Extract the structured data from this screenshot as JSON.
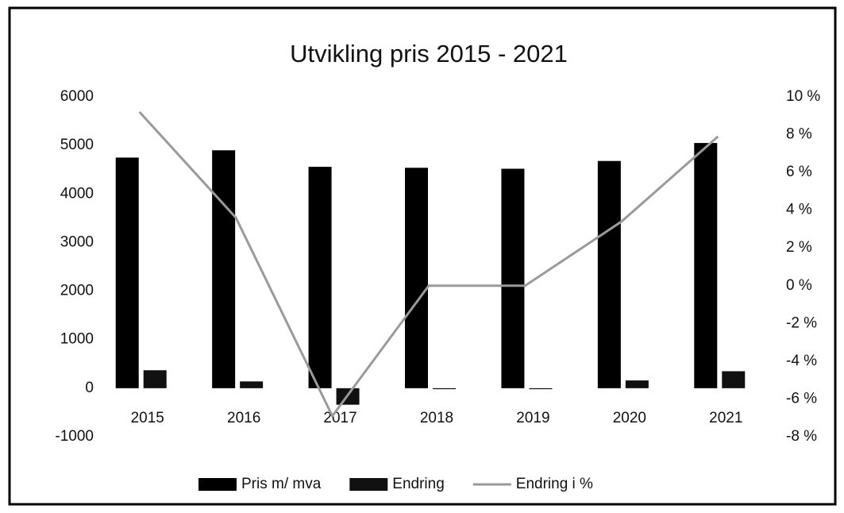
{
  "chart_data": {
    "type": "bar",
    "title": "Utvikling pris 2015 - 2021",
    "categories": [
      "2015",
      "2016",
      "2017",
      "2018",
      "2019",
      "2020",
      "2021"
    ],
    "series": [
      {
        "name": "Pris m/ mva",
        "type": "bar",
        "color": "#000000",
        "values": [
          4750,
          4900,
          4560,
          4540,
          4520,
          4680,
          5050
        ]
      },
      {
        "name": "Endring",
        "type": "bar",
        "color": "#111111",
        "values": [
          370,
          140,
          -340,
          -20,
          -20,
          160,
          350
        ]
      },
      {
        "name": "Endring i %",
        "type": "line",
        "axis": "y2",
        "color": "#9a9a9a",
        "values": [
          9.2,
          3.6,
          -6.9,
          0,
          0,
          3.4,
          7.9
        ]
      }
    ],
    "ylim": [
      -1000,
      6000
    ],
    "yticks": [
      -1000,
      0,
      1000,
      2000,
      3000,
      4000,
      5000,
      6000
    ],
    "y2lim": [
      -8,
      10
    ],
    "y2ticks": [
      {
        "value": -8,
        "label": "-8 %"
      },
      {
        "value": -6,
        "label": "-6 %"
      },
      {
        "value": -4,
        "label": "-4 %"
      },
      {
        "value": -2,
        "label": "-2 %"
      },
      {
        "value": 0,
        "label": "0 %"
      },
      {
        "value": 2,
        "label": "2 %"
      },
      {
        "value": 4,
        "label": "4 %"
      },
      {
        "value": 6,
        "label": "6 %"
      },
      {
        "value": 8,
        "label": "8 %"
      },
      {
        "value": 10,
        "label": "10 %"
      }
    ],
    "legend": "bottom",
    "grid": false
  }
}
